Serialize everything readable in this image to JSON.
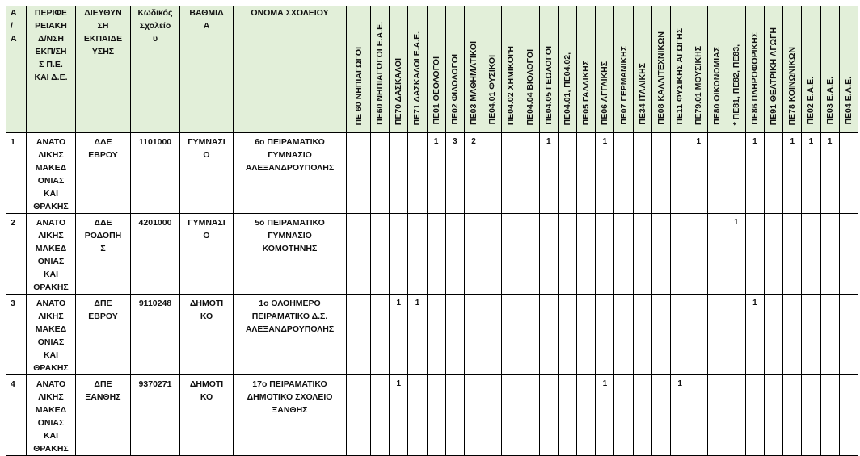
{
  "header": {
    "fixed": [
      "Α\n/\nΑ",
      "ΠΕΡΙΦΕ\nΡΕΙΑΚΗ\nΔ/ΝΣΗ\nΕΚΠ/ΣΗ\nΣ Π.Ε.\nΚΑΙ Δ.Ε.",
      "ΔΙΕΥΘΥΝ\nΣΗ\nΕΚΠΑΙΔΕ\nΥΣΗΣ",
      "Κωδικός\nΣχολείο\nυ",
      "ΒΑΘΜΙΔ\nΑ",
      "ΟΝΟΜΑ ΣΧΟΛΕΙΟΥ"
    ],
    "specialties": [
      "ΠΕ 60 ΝΗΠΙΑΓΩΓΟΙ",
      "ΠΕ60 ΝΗΠΙΑΓΩΓΟΙ Ε.Α.Ε.",
      "ΠΕ70 ΔΑΣΚΑΛΟΙ",
      "ΠΕ71 ΔΑΣΚΑΛΟΙ Ε.Α.Ε.",
      "ΠΕ01 ΘΕΟΛΟΓΟΙ",
      "ΠΕ02 ΦΙΛΟΛΟΓΟΙ",
      "ΠΕ03 ΜΑΘΗΜΑΤΙΚΟΙ",
      "ΠΕ04.01 ΦΥΣΙΚΟΙ",
      "ΠΕ04.02 ΧΗΜΙΚΟΙ'Η",
      "ΠΕ04.04 ΒΙΟΛΟΓΟΙ",
      "ΠΕ04.05 ΓΕΩΛΟΓΟΙ",
      "ΠΕ04.01, ΠΕ04.02,",
      "ΠΕ05 ΓΑΛΛΙΚΗΣ",
      "ΠΕ06 ΑΓΓΛΙΚΗΣ",
      "ΠΕ07 ΓΕΡΜΑΝΙΚΗΣ",
      "ΠΕ34 ΙΤΑΛΙΚΗΣ",
      "ΠΕ08 ΚΑΛΛΙΤΕΧΝΙΚΩΝ",
      "ΠΕ11 ΦΥΣΙΚΗΣ ΑΓΩΓΗΣ",
      "ΠΕ79.01 ΜΟΥΣΙΚΗΣ",
      "ΠΕ80 ΟΙΚΟΝΟΜΙΑΣ",
      "* ΠΕ81, ΠΕ82, ΠΕ83,",
      "ΠΕ86 ΠΛΗΡΟΦΟΡΙΚΗΣ",
      "ΠΕ91 ΘΕΑΤΡΙΚΗ ΑΓΩΓΗ",
      "ΠΕ78 ΚΟΙΝΩΝΙΚΩΝ",
      "ΠΕ02  Ε.Α.Ε.",
      "ΠΕ03 Ε.Α.Ε.",
      "ΠΕ04 Ε.Α.Ε."
    ]
  },
  "header_bg": "#e2efd9",
  "rows": [
    {
      "aa": "1",
      "region": "ΑΝΑΤΟ\nΛΙΚΗΣ\nΜΑΚΕΔ\nΟΝΙΑΣ\nΚΑΙ\nΘΡΑΚΗΣ",
      "directorate": "ΔΔΕ\nΕΒΡΟΥ",
      "code": "1101000",
      "level": "ΓΥΜΝΑΣΙ\nΟ",
      "school": "6ο ΠΕΙΡΑΜΑΤΙΚΟ\nΓΥΜΝΑΣΙΟ\nΑΛΕΞΑΝΔΡΟΥΠΟΛΗΣ",
      "values": [
        "",
        "",
        "",
        "",
        "1",
        "3",
        "2",
        "",
        "",
        "",
        "1",
        "",
        "",
        "1",
        "",
        "",
        "",
        "",
        "1",
        "",
        "",
        "1",
        "",
        "1",
        "1",
        "1",
        ""
      ]
    },
    {
      "aa": "2",
      "region": "ΑΝΑΤΟ\nΛΙΚΗΣ\nΜΑΚΕΔ\nΟΝΙΑΣ\nΚΑΙ\nΘΡΑΚΗΣ",
      "directorate": "ΔΔΕ\nΡΟΔΟΠΗ\nΣ",
      "code": "4201000",
      "level": "ΓΥΜΝΑΣΙ\nΟ",
      "school": "5ο ΠΕΙΡΑΜΑΤΙΚΟ\nΓΥΜΝΑΣΙΟ\nΚΟΜΟΤΗΝΗΣ",
      "values": [
        "",
        "",
        "",
        "",
        "",
        "",
        "",
        "",
        "",
        "",
        "",
        "",
        "",
        "",
        "",
        "",
        "",
        "",
        "",
        "",
        "1",
        "",
        "",
        "",
        "",
        "",
        ""
      ]
    },
    {
      "aa": "3",
      "region": "ΑΝΑΤΟ\nΛΙΚΗΣ\nΜΑΚΕΔ\nΟΝΙΑΣ\nΚΑΙ\nΘΡΑΚΗΣ",
      "directorate": "ΔΠΕ\nΕΒΡΟΥ",
      "code": "9110248",
      "level": "ΔΗΜΟΤΙ\nΚΟ",
      "school": "1ο  ΟΛΟΗΜΕΡΟ\nΠΕΙΡΑΜΑΤΙΚΟ  Δ.Σ.\nΑΛΕΞΑΝΔΡΟΥΠΟΛΗΣ",
      "values": [
        "",
        "",
        "1",
        "1",
        "",
        "",
        "",
        "",
        "",
        "",
        "",
        "",
        "",
        "",
        "",
        "",
        "",
        "",
        "",
        "",
        "",
        "1",
        "",
        "",
        "",
        "",
        ""
      ]
    },
    {
      "aa": "4",
      "region": "ΑΝΑΤΟ\nΛΙΚΗΣ\nΜΑΚΕΔ\nΟΝΙΑΣ\nΚΑΙ\nΘΡΑΚΗΣ",
      "directorate": "ΔΠΕ\nΞΑΝΘΗΣ",
      "code": "9370271",
      "level": "ΔΗΜΟΤΙ\nΚΟ",
      "school": "17ο ΠΕΙΡΑΜΑΤΙΚΟ\nΔΗΜΟΤΙΚΟ ΣΧΟΛΕΙΟ\nΞΑΝΘΗΣ",
      "values": [
        "",
        "",
        "1",
        "",
        "",
        "",
        "",
        "",
        "",
        "",
        "",
        "",
        "",
        "1",
        "",
        "",
        "",
        "1",
        "",
        "",
        "",
        "",
        "",
        "",
        "",
        "",
        ""
      ]
    }
  ]
}
